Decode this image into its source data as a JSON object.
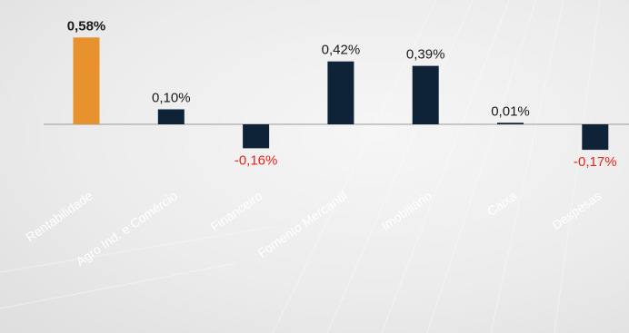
{
  "chart_data": {
    "type": "bar",
    "categories": [
      "Rentabilidade",
      "Agro Ind. e Comércio",
      "Financeiro",
      "Fomento Mercantil",
      "Imobiliário",
      "Caixa",
      "Despesas"
    ],
    "values": [
      0.58,
      0.1,
      -0.16,
      0.42,
      0.39,
      0.01,
      -0.17
    ],
    "data_labels": [
      "0,58%",
      "0,10%",
      "-0,16%",
      "0,42%",
      "0,39%",
      "0,01%",
      "-0,17%"
    ],
    "title": "",
    "xlabel": "",
    "ylabel": "",
    "grid": false,
    "legend": "none",
    "colors": {
      "highlight": "#e8922f",
      "positive": "#0f2338",
      "negative_bar": "#0f2338",
      "negative_label": "#e8221c",
      "axis": "#9a9a9a",
      "category_label": "#ffffff"
    }
  }
}
